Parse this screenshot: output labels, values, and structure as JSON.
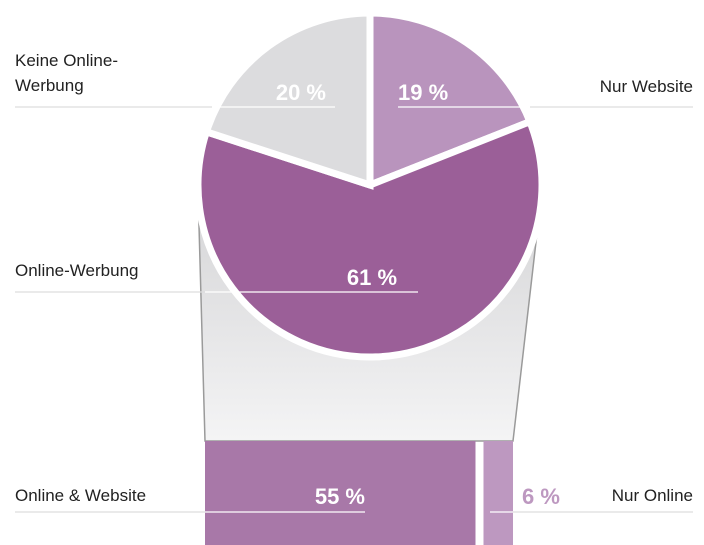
{
  "chart_data": [
    {
      "type": "pie",
      "categories": [
        "Nur Website",
        "Online-Werbung",
        "Keine Online-Werbung"
      ],
      "values": [
        19,
        61,
        20
      ],
      "value_labels": [
        "19 %",
        "61 %",
        "20 %"
      ],
      "colors": [
        "#b994bd",
        "#9b5f98",
        "#dcdcde"
      ]
    },
    {
      "type": "bar",
      "categories": [
        "Online & Website",
        "Nur Online"
      ],
      "values": [
        55,
        6
      ],
      "value_labels": [
        "55 %",
        "6 %"
      ],
      "colors": [
        "#a878a8",
        "#bd98c0"
      ]
    }
  ]
}
